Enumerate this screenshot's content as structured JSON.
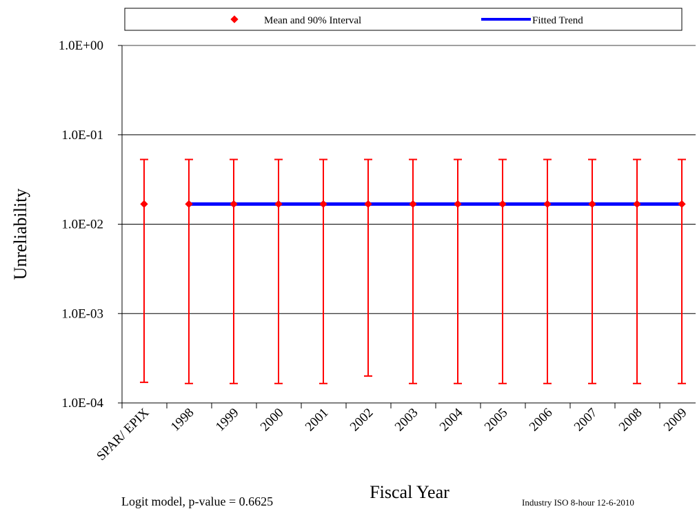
{
  "chart_data": {
    "type": "scatter",
    "title": "",
    "xlabel": "Fiscal Year",
    "ylabel": "Unreliability",
    "y_scale": "log",
    "ylim": [
      0.0001,
      1.0
    ],
    "y_ticks": [
      "1.0E+00",
      "1.0E-01",
      "1.0E-02",
      "1.0E-03",
      "1.0E-04"
    ],
    "categories": [
      "SPAR/ EPIX",
      "1998",
      "1999",
      "2000",
      "2001",
      "2002",
      "2003",
      "2004",
      "2005",
      "2006",
      "2007",
      "2008",
      "2009"
    ],
    "grid": true,
    "legend_position": "top",
    "series": [
      {
        "name": "Mean and 90% Interval",
        "color": "#ff0000",
        "marker": "diamond",
        "mean": [
          0.0168,
          0.0168,
          0.0168,
          0.0168,
          0.0168,
          0.0168,
          0.0168,
          0.0168,
          0.0168,
          0.0168,
          0.0168,
          0.0168,
          0.0168
        ],
        "lower": [
          0.00017,
          0.000165,
          0.000165,
          0.000165,
          0.000165,
          0.0002,
          0.000165,
          0.000165,
          0.000165,
          0.000165,
          0.000165,
          0.000165,
          0.000165
        ],
        "upper": [
          0.053,
          0.053,
          0.053,
          0.053,
          0.053,
          0.053,
          0.053,
          0.053,
          0.053,
          0.053,
          0.053,
          0.053,
          0.053
        ]
      },
      {
        "name": "Fitted Trend",
        "color": "#0000ff",
        "categories": [
          "1998",
          "2009"
        ],
        "values": [
          0.0168,
          0.0168
        ]
      }
    ],
    "annotations": {
      "model": "Logit model, p-value = 0.6625",
      "source": "Industry ISO 8-hour 12-6-2010"
    }
  }
}
